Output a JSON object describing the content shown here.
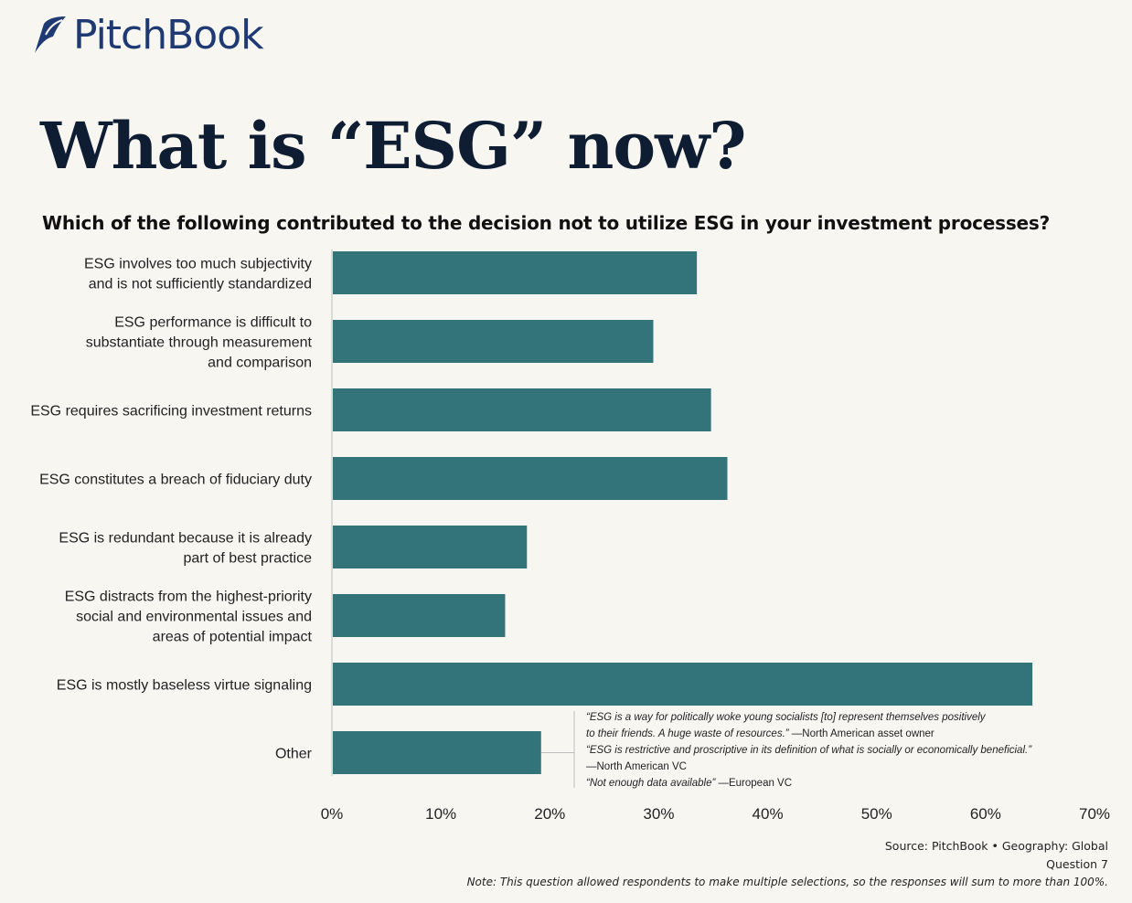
{
  "brand": {
    "name": "PitchBook"
  },
  "title": "What is “ESG” now?",
  "colors": {
    "bar": "#33737a",
    "title": "#0f1d33",
    "brand": "#1f3a73",
    "axis": "#bdbdbd"
  },
  "chart_data": {
    "type": "bar",
    "orientation": "horizontal",
    "title": "Which of the following contributed to the decision not to utilize ESG in your investment processes?",
    "categories": [
      [
        "ESG involves too much subjectivity",
        "and is not sufficiently standardized"
      ],
      [
        "ESG performance is difficult to",
        "substantiate through measurement",
        "and comparison"
      ],
      [
        "ESG requires sacrificing investment returns"
      ],
      [
        "ESG constitutes a breach of fiduciary duty"
      ],
      [
        "ESG is redundant because it is already",
        "part of best practice"
      ],
      [
        "ESG distracts from the highest-priority",
        "social and environmental issues and",
        "areas of potential impact"
      ],
      [
        "ESG is mostly baseless virtue signaling"
      ],
      [
        "Other"
      ]
    ],
    "values": [
      33.5,
      29.5,
      34.8,
      36.3,
      17.9,
      15.9,
      64.3,
      19.2
    ],
    "xlim": [
      0,
      70
    ],
    "xticks": [
      "0%",
      "10%",
      "20%",
      "30%",
      "40%",
      "50%",
      "60%",
      "70%"
    ],
    "xlabel": "",
    "ylabel": "",
    "grid": false,
    "annotations": [
      [
        {
          "text": "“ESG is a way for politically woke young socialists [to] represent themselves positively",
          "italic": true
        }
      ],
      [
        {
          "text": "to their friends. A huge waste of resources.”",
          "italic": true
        },
        {
          "text": " —North American asset owner",
          "italic": false
        }
      ],
      [
        {
          "text": "“ESG is restrictive and proscriptive in its definition of what is socially or economically beneficial.”",
          "italic": true
        }
      ],
      [
        {
          "text": "—North American VC",
          "italic": false
        }
      ],
      [
        {
          "text": "“Not enough data available”",
          "italic": true
        },
        {
          "text": " —European VC",
          "italic": false
        }
      ]
    ]
  },
  "footer": {
    "source": "Source: PitchBook  •  Geography: Global",
    "question": "Question 7",
    "note": "Note: This question allowed respondents to make multiple selections, so the responses will sum to more than 100%."
  }
}
